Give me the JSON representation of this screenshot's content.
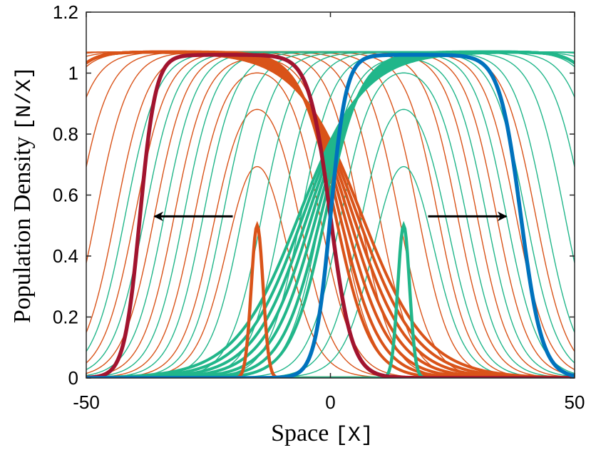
{
  "chart_data": {
    "type": "line",
    "title": "",
    "xlabel": "Space",
    "xunit": "[X]",
    "ylabel": "Population Density",
    "yunit": "[N/X]",
    "xlim": [
      -50,
      50
    ],
    "ylim": [
      0,
      1.2
    ],
    "xticks": [
      -50,
      0,
      50
    ],
    "xtick_labels": [
      "-50",
      "0",
      "50"
    ],
    "yticks": [
      0,
      0.2,
      0.4,
      0.6,
      0.8,
      1,
      1.2
    ],
    "ytick_labels": [
      "0",
      "0.2",
      "0.4",
      "0.6",
      "0.8",
      "1",
      "1.2"
    ],
    "grid": false,
    "legend": "none",
    "colors": {
      "left_population": "#d95319",
      "right_population": "#21b68a",
      "left_highlight": "#a2142f",
      "right_highlight": "#0072bd",
      "arrow": "#000000"
    },
    "series": [
      {
        "population": "left",
        "initial_peak": {
          "center": -15,
          "height": 0.5
        },
        "profiles": [
          {
            "center": -15,
            "width": 5.5,
            "height": 0.98
          },
          {
            "center": -15,
            "width": 9,
            "height": 1.0
          },
          {
            "center": -15,
            "width": 13,
            "height": 1.04
          },
          {
            "center": -15,
            "width": 17,
            "height": 1.06
          },
          {
            "center": -15,
            "width": 21,
            "height": 1.07
          },
          {
            "center": -15,
            "width": 25,
            "height": 1.07
          },
          {
            "center": -15,
            "width": 29,
            "height": 1.07
          },
          {
            "center": -15,
            "width": 33,
            "height": 1.07
          },
          {
            "center": -15,
            "width": 37,
            "height": 1.07
          },
          {
            "center": -15,
            "width": 41,
            "height": 1.07
          },
          {
            "center": -15,
            "width": 45,
            "height": 1.07
          },
          {
            "center": -15,
            "width": 49,
            "height": 1.07
          },
          {
            "center": -15,
            "width": 53,
            "height": 1.07
          },
          {
            "center": -15,
            "width": 57,
            "height": 1.07
          }
        ],
        "highlight_front": {
          "left_front": -39,
          "right_front": 0,
          "height": 1.06
        }
      },
      {
        "population": "right",
        "initial_peak": {
          "center": 15,
          "height": 0.5
        },
        "profiles": [
          {
            "center": 15,
            "width": 5.5,
            "height": 0.98
          },
          {
            "center": 15,
            "width": 9,
            "height": 1.0
          },
          {
            "center": 15,
            "width": 13,
            "height": 1.04
          },
          {
            "center": 15,
            "width": 17,
            "height": 1.06
          },
          {
            "center": 15,
            "width": 21,
            "height": 1.07
          },
          {
            "center": 15,
            "width": 25,
            "height": 1.07
          },
          {
            "center": 15,
            "width": 29,
            "height": 1.07
          },
          {
            "center": 15,
            "width": 33,
            "height": 1.07
          },
          {
            "center": 15,
            "width": 37,
            "height": 1.07
          },
          {
            "center": 15,
            "width": 41,
            "height": 1.07
          },
          {
            "center": 15,
            "width": 45,
            "height": 1.07
          },
          {
            "center": 15,
            "width": 49,
            "height": 1.07
          },
          {
            "center": 15,
            "width": 53,
            "height": 1.07
          },
          {
            "center": 15,
            "width": 57,
            "height": 1.07
          }
        ],
        "highlight_front": {
          "left_front": 0,
          "right_front": 39,
          "height": 1.06
        }
      }
    ],
    "annotations": [
      {
        "type": "arrow",
        "from": [
          -20,
          0.53
        ],
        "to": [
          -36,
          0.53
        ]
      },
      {
        "type": "arrow",
        "from": [
          20,
          0.53
        ],
        "to": [
          36,
          0.53
        ]
      }
    ]
  }
}
